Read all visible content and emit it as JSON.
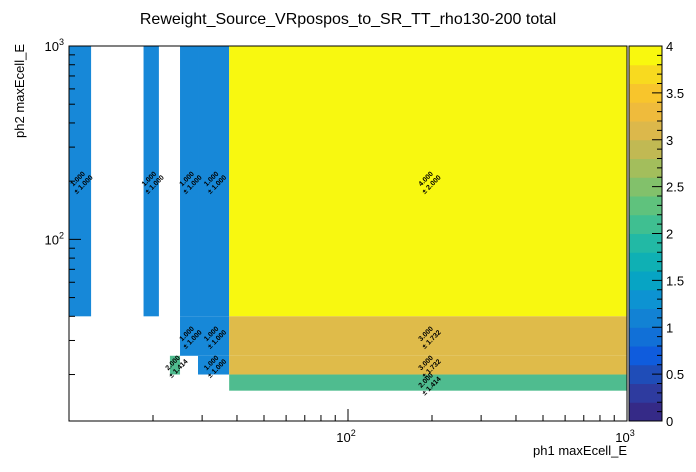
{
  "chart_data": {
    "type": "heatmap",
    "title": "Reweight_Source_VRpospos_to_SR_TT_rho130-200 total",
    "xlabel": "ph1 maxEcell_E",
    "ylabel": "ph2 maxEcell_E",
    "x_scale": "log",
    "y_scale": "log",
    "xlim": [
      10,
      1000
    ],
    "ylim": [
      11.5,
      1000
    ],
    "x_tick_labels": [
      {
        "value": 100,
        "base": "10",
        "exp": "2"
      },
      {
        "value": 1000,
        "base": "10",
        "exp": "3"
      }
    ],
    "y_tick_labels": [
      {
        "value": 100,
        "base": "10",
        "exp": "2"
      },
      {
        "value": 1000,
        "base": "10",
        "exp": "3"
      }
    ],
    "color_scale": {
      "min": 0,
      "max": 4,
      "ticks": [
        "0",
        "0.5",
        "1",
        "1.5",
        "2",
        "2.5",
        "3",
        "3.5",
        "4"
      ]
    },
    "cells": [
      {
        "x0": 10,
        "x1": 12,
        "y0": 40,
        "y1": 1000,
        "value": 1.0,
        "label": "1.000",
        "error": "± 1.000"
      },
      {
        "x0": 18.5,
        "x1": 21,
        "y0": 40,
        "y1": 1000,
        "value": 1.0,
        "label": "1.000",
        "error": "± 1.000"
      },
      {
        "x0": 25,
        "x1": 29,
        "y0": 40,
        "y1": 1000,
        "value": 1.0,
        "label": "1.000",
        "error": "± 1.000"
      },
      {
        "x0": 29,
        "x1": 37.5,
        "y0": 40,
        "y1": 1000,
        "value": 1.0,
        "label": "1.000",
        "error": "± 1.000"
      },
      {
        "x0": 37.5,
        "x1": 1000,
        "y0": 40,
        "y1": 1000,
        "value": 4.0,
        "label": "4.000",
        "error": "± 2.000"
      },
      {
        "x0": 23,
        "x1": 25,
        "y0": 20,
        "y1": 25,
        "value": 2.0,
        "label": "2.000",
        "error": "± 1.414"
      },
      {
        "x0": 25,
        "x1": 29,
        "y0": 25,
        "y1": 40,
        "value": 1.0,
        "label": "1.000",
        "error": "± 1.000"
      },
      {
        "x0": 29,
        "x1": 37.5,
        "y0": 25,
        "y1": 40,
        "value": 1.0,
        "label": "1.000",
        "error": "± 1.000"
      },
      {
        "x0": 29,
        "x1": 37.5,
        "y0": 20,
        "y1": 25,
        "value": 1.0,
        "label": "1.000",
        "error": "± 1.000"
      },
      {
        "x0": 37.5,
        "x1": 1000,
        "y0": 25,
        "y1": 40,
        "value": 3.0,
        "label": "3.000",
        "error": "± 1.732"
      },
      {
        "x0": 37.5,
        "x1": 1000,
        "y0": 20,
        "y1": 25,
        "value": 3.0,
        "label": "3.000",
        "error": "± 1.732"
      },
      {
        "x0": 37.5,
        "x1": 1000,
        "y0": 16.5,
        "y1": 20,
        "value": 2.0,
        "label": "2.000",
        "error": "± 1.414"
      }
    ],
    "palette": [
      "#352a87",
      "#2e3b9f",
      "#1f4db8",
      "#0f5cdd",
      "#1170d7",
      "#1282d4",
      "#0d93d2",
      "#07a4c4",
      "#0fb0b4",
      "#22b9a5",
      "#3fbf91",
      "#5fc27d",
      "#82c16b",
      "#a3be5c",
      "#c1b953",
      "#dcb84b",
      "#efbb3c",
      "#f8c52c",
      "#f8da1f",
      "#f9f80e"
    ],
    "cell_colors": {
      "1": "#1788d8",
      "2": "#4fbc8f",
      "3": "#dfbb4a",
      "4": "#f8f810"
    }
  }
}
